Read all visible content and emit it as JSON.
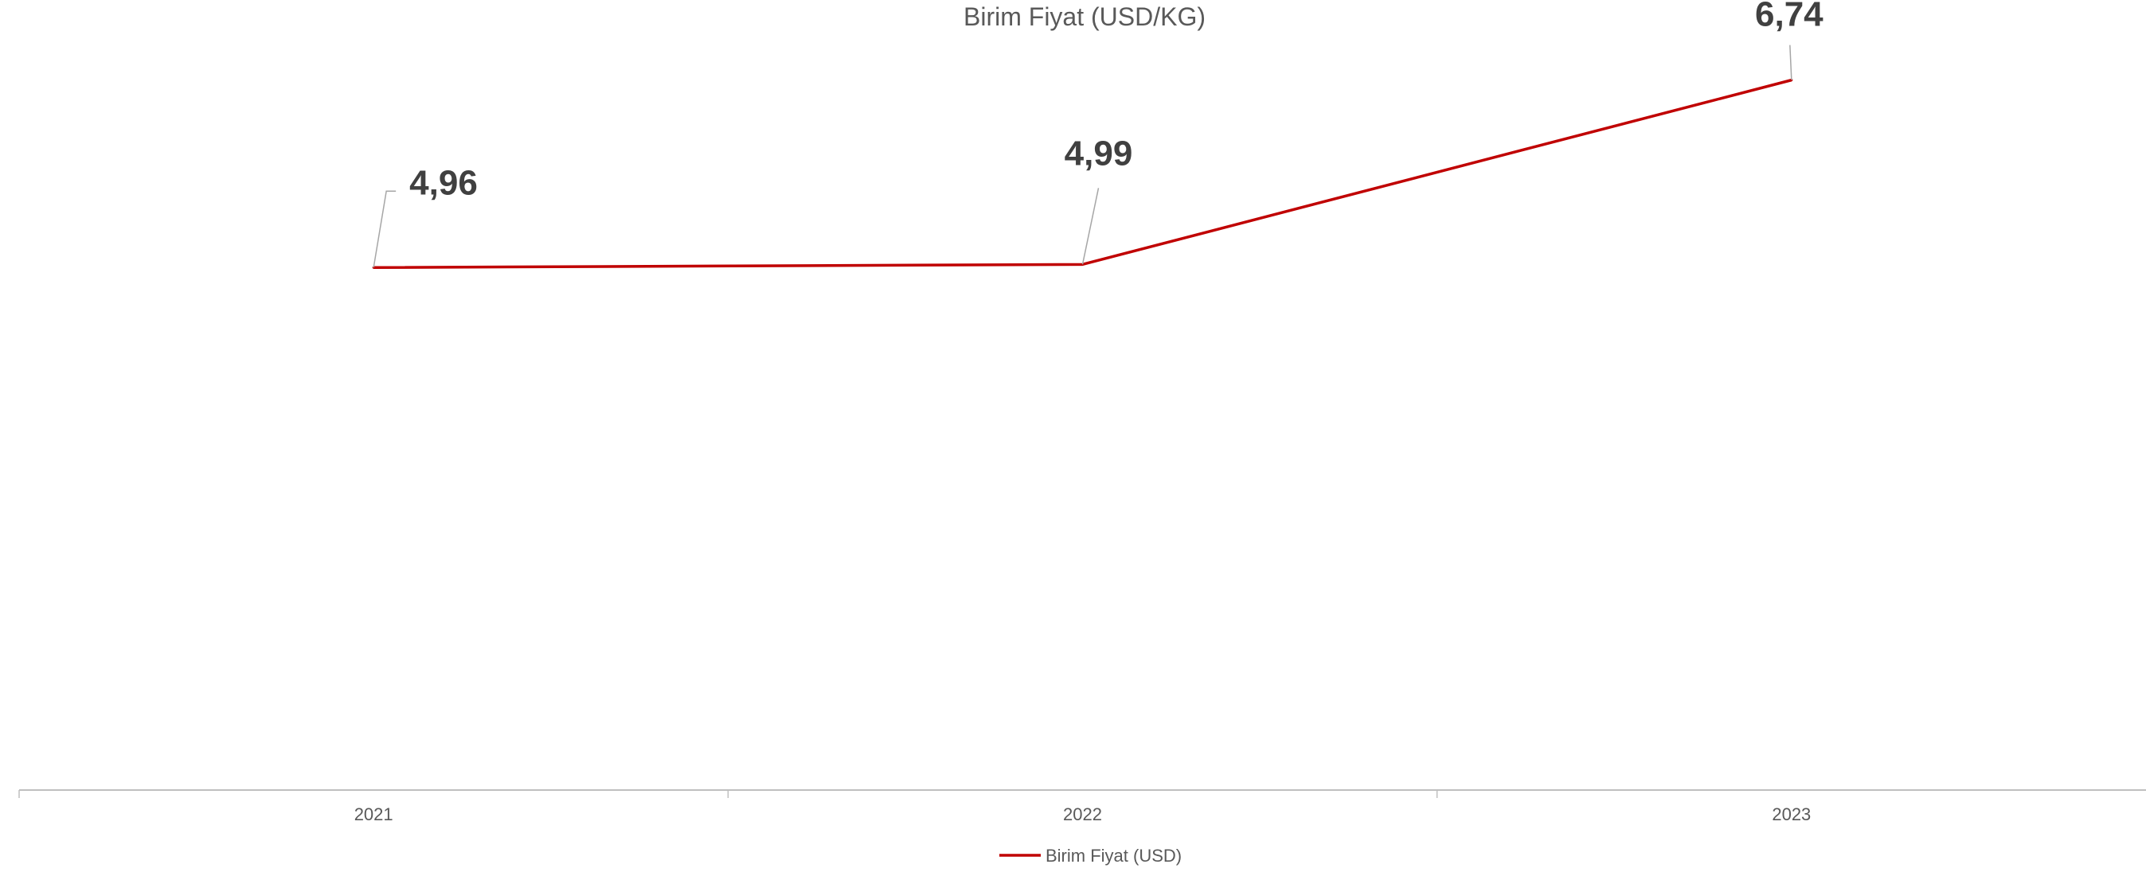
{
  "chart_data": {
    "type": "line",
    "title": "Birim Fiyat (USD/KG)",
    "categories": [
      "2021",
      "2022",
      "2023"
    ],
    "series": [
      {
        "name": "Birim Fiyat (USD)",
        "values": [
          4.96,
          4.99,
          6.74
        ],
        "labels": [
          "4,96",
          "4,99",
          "6,74"
        ],
        "color": "#C00000"
      }
    ],
    "ylim": [
      0,
      7.5
    ],
    "grid": false,
    "legend_position": "bottom",
    "xlabel": "",
    "ylabel": ""
  },
  "colors": {
    "axis": "#BFBFBF",
    "leader_line": "#A6A6A6",
    "series": "#C00000"
  }
}
